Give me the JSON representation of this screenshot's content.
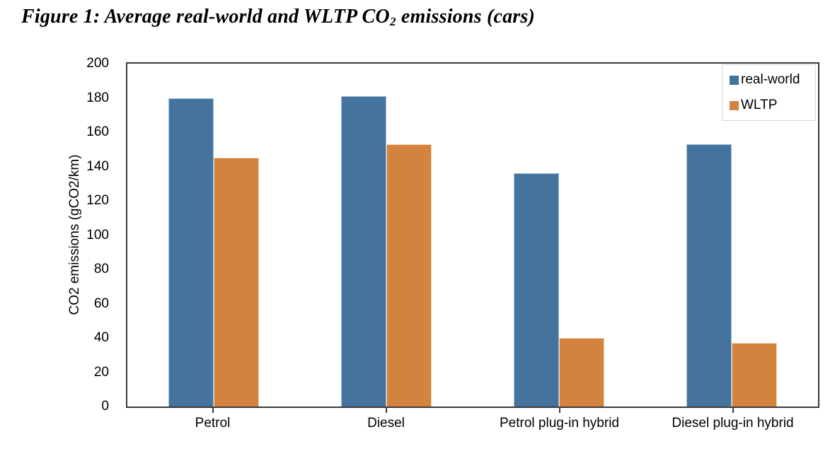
{
  "title": {
    "prefix": "Figure 1: Average real-world and WLTP CO",
    "subscript": "2",
    "suffix": " emissions (cars)"
  },
  "chart_data": {
    "type": "bar",
    "title": "Figure 1: Average real-world and WLTP CO2 emissions (cars)",
    "categories": [
      "Petrol",
      "Diesel",
      "Petrol plug-in hybrid",
      "Diesel plug-in hybrid"
    ],
    "series": [
      {
        "name": "real-world",
        "values": [
          180,
          181,
          136,
          153
        ],
        "color": "#44739E",
        "edge_color": "#A3BFDC"
      },
      {
        "name": "WLTP",
        "values": [
          145,
          153,
          40,
          37
        ],
        "color": "#D3833E",
        "edge_color": "#F0D9BC"
      }
    ],
    "xlabel": "",
    "ylabel": "CO2 emissions (gCO2/km)",
    "ylim": [
      0,
      200
    ],
    "ytick_step": 20,
    "yticks": [
      0,
      20,
      40,
      60,
      80,
      100,
      120,
      140,
      160,
      180,
      200
    ],
    "grid": false,
    "legend_position": "top-right"
  }
}
